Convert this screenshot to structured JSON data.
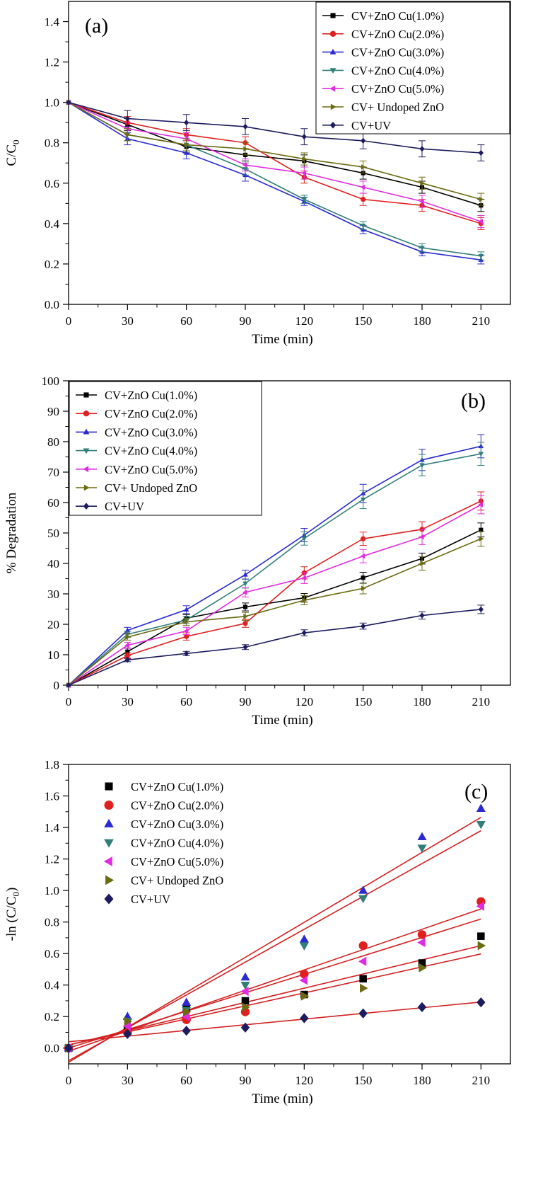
{
  "chart_data": [
    {
      "panel": "(a)",
      "type": "line",
      "xlabel": "Time (min)",
      "ylabel": "C/C",
      "ylabel_sub": "0",
      "xlim": [
        0,
        225
      ],
      "ylim": [
        0.0,
        1.5
      ],
      "xticks": [
        0,
        30,
        60,
        90,
        120,
        150,
        180,
        210
      ],
      "yticks": [
        0.0,
        0.2,
        0.4,
        0.6,
        0.8,
        1.0,
        1.2,
        1.4
      ],
      "ytick_decimals": 1,
      "legend_position": "top-right",
      "legend_frame": true,
      "grid": false,
      "x": [
        0,
        30,
        60,
        90,
        120,
        150,
        180,
        210
      ],
      "series": [
        {
          "name": "CV+ZnO Cu(1.0%)",
          "color": "#000000",
          "marker": "square",
          "values": [
            1.0,
            0.89,
            0.78,
            0.74,
            0.71,
            0.65,
            0.58,
            0.49
          ],
          "errors": [
            0,
            0.03,
            0.03,
            0.03,
            0.03,
            0.03,
            0.03,
            0.03
          ]
        },
        {
          "name": "CV+ZnO Cu(2.0%)",
          "color": "#e02020",
          "marker": "circle",
          "values": [
            1.0,
            0.9,
            0.84,
            0.8,
            0.63,
            0.52,
            0.49,
            0.4
          ],
          "errors": [
            0,
            0.03,
            0.03,
            0.03,
            0.03,
            0.03,
            0.03,
            0.03
          ]
        },
        {
          "name": "CV+ZnO Cu(3.0%)",
          "color": "#2a2ad0",
          "marker": "triangle-up",
          "values": [
            1.0,
            0.82,
            0.75,
            0.64,
            0.51,
            0.37,
            0.26,
            0.22
          ],
          "errors": [
            0,
            0.03,
            0.03,
            0.03,
            0.02,
            0.02,
            0.02,
            0.02
          ]
        },
        {
          "name": "CV+ZnO Cu(4.0%)",
          "color": "#2f7f78",
          "marker": "triangle-down",
          "values": [
            1.0,
            0.84,
            0.79,
            0.67,
            0.52,
            0.39,
            0.28,
            0.24
          ],
          "errors": [
            0,
            0.03,
            0.03,
            0.03,
            0.02,
            0.02,
            0.02,
            0.02
          ]
        },
        {
          "name": "CV+ZnO Cu(5.0%)",
          "color": "#e02ce0",
          "marker": "triangle-left",
          "values": [
            1.0,
            0.87,
            0.82,
            0.69,
            0.65,
            0.58,
            0.51,
            0.41
          ],
          "errors": [
            0,
            0.03,
            0.03,
            0.03,
            0.03,
            0.03,
            0.03,
            0.03
          ]
        },
        {
          "name": "CV+ Undoped ZnO",
          "color": "#6b6b12",
          "marker": "triangle-right",
          "values": [
            1.0,
            0.84,
            0.79,
            0.77,
            0.72,
            0.68,
            0.6,
            0.52
          ],
          "errors": [
            0,
            0.03,
            0.03,
            0.03,
            0.03,
            0.03,
            0.03,
            0.03
          ]
        },
        {
          "name": "CV+UV",
          "color": "#1c1c5e",
          "marker": "diamond",
          "values": [
            1.0,
            0.92,
            0.9,
            0.88,
            0.83,
            0.81,
            0.77,
            0.75
          ],
          "errors": [
            0,
            0.04,
            0.04,
            0.04,
            0.04,
            0.04,
            0.04,
            0.04
          ]
        }
      ]
    },
    {
      "panel": "(b)",
      "type": "line",
      "xlabel": "Time (min)",
      "ylabel": "% Degradation",
      "xlim": [
        0,
        225
      ],
      "ylim": [
        0,
        100
      ],
      "xticks": [
        0,
        30,
        60,
        90,
        120,
        150,
        180,
        210
      ],
      "yticks": [
        0,
        10,
        20,
        30,
        40,
        50,
        60,
        70,
        80,
        90,
        100
      ],
      "ytick_decimals": 0,
      "legend_position": "top-left",
      "legend_frame": true,
      "grid": false,
      "x": [
        0,
        30,
        60,
        90,
        120,
        150,
        180,
        210
      ],
      "series": [
        {
          "name": "CV+ZnO Cu(1.0%)",
          "color": "#000000",
          "marker": "square",
          "values": [
            0,
            11.0,
            22.0,
            25.7,
            28.7,
            35.3,
            41.6,
            51.0
          ],
          "errors": [
            0,
            1.2,
            1.2,
            1.3,
            1.4,
            1.8,
            1.8,
            2.3
          ]
        },
        {
          "name": "CV+ZnO Cu(2.0%)",
          "color": "#e02020",
          "marker": "circle",
          "values": [
            0,
            9.7,
            16.0,
            20.3,
            36.9,
            48.1,
            51.2,
            60.5
          ],
          "errors": [
            0,
            1.0,
            1.2,
            1.3,
            2.0,
            2.2,
            2.5,
            3.0
          ]
        },
        {
          "name": "CV+ZnO Cu(3.0%)",
          "color": "#2a2ad0",
          "marker": "triangle-up",
          "values": [
            0,
            18.0,
            24.8,
            36.3,
            49.3,
            63.0,
            74.0,
            78.5
          ],
          "errors": [
            0,
            1.0,
            1.3,
            1.5,
            2.2,
            3.0,
            3.5,
            3.8
          ]
        },
        {
          "name": "CV+ZnO Cu(4.0%)",
          "color": "#2f7f78",
          "marker": "triangle-down",
          "values": [
            0,
            16.7,
            21.4,
            33.4,
            48.2,
            61.0,
            72.3,
            76.0
          ],
          "errors": [
            0,
            1.0,
            1.2,
            1.5,
            2.2,
            3.0,
            3.5,
            3.8
          ]
        },
        {
          "name": "CV+ZnO Cu(5.0%)",
          "color": "#e02ce0",
          "marker": "triangle-left",
          "values": [
            0,
            13.1,
            17.8,
            30.5,
            35.2,
            42.4,
            48.7,
            59.3
          ],
          "errors": [
            0,
            1.0,
            1.2,
            1.5,
            1.8,
            2.2,
            2.5,
            3.0
          ]
        },
        {
          "name": "CV+ Undoped ZnO",
          "color": "#6b6b12",
          "marker": "triangle-right",
          "values": [
            0,
            15.8,
            20.8,
            22.6,
            27.9,
            31.8,
            40.0,
            48.1
          ],
          "errors": [
            0,
            1.0,
            1.2,
            1.3,
            1.5,
            1.8,
            2.2,
            2.5
          ]
        },
        {
          "name": "CV+UV",
          "color": "#1c1c5e",
          "marker": "diamond",
          "values": [
            0,
            8.3,
            10.4,
            12.5,
            17.2,
            19.4,
            22.9,
            24.9
          ],
          "errors": [
            0,
            0.6,
            0.7,
            0.8,
            1.0,
            1.0,
            1.2,
            1.4
          ]
        }
      ]
    },
    {
      "panel": "(c)",
      "type": "scatter",
      "xlabel": "Time (min)",
      "ylabel": "-ln (C/C",
      "ylabel_sub": "0",
      "ylabel_tail": ")",
      "xlim": [
        0,
        225
      ],
      "ylim": [
        -0.1,
        1.8
      ],
      "xticks": [
        0,
        30,
        60,
        90,
        120,
        150,
        180,
        210
      ],
      "yticks": [
        0.0,
        0.2,
        0.4,
        0.6,
        0.8,
        1.0,
        1.2,
        1.4,
        1.6,
        1.8
      ],
      "ytick_decimals": 1,
      "legend_position": "top-left",
      "legend_frame": false,
      "grid": false,
      "fit_color": "#d42020",
      "x": [
        0,
        30,
        60,
        90,
        120,
        150,
        180,
        210
      ],
      "series": [
        {
          "name": "CV+ZnO Cu(1.0%)",
          "color": "#000000",
          "marker": "square",
          "values": [
            0,
            0.12,
            0.25,
            0.3,
            0.34,
            0.44,
            0.54,
            0.71
          ],
          "fit": {
            "intercept": 0.02,
            "slope": 0.00275
          }
        },
        {
          "name": "CV+ZnO Cu(2.0%)",
          "color": "#e02020",
          "marker": "circle",
          "values": [
            0,
            0.1,
            0.18,
            0.23,
            0.47,
            0.65,
            0.72,
            0.93
          ],
          "fit": {
            "intercept": -0.02,
            "slope": 0.0043
          }
        },
        {
          "name": "CV+ZnO Cu(3.0%)",
          "color": "#2a2ad0",
          "marker": "triangle-up",
          "values": [
            0,
            0.2,
            0.29,
            0.45,
            0.69,
            1.0,
            1.34,
            1.52
          ],
          "fit": {
            "intercept": -0.09,
            "slope": 0.0074
          }
        },
        {
          "name": "CV+ZnO Cu(4.0%)",
          "color": "#2f7f78",
          "marker": "triangle-down",
          "values": [
            0,
            0.17,
            0.24,
            0.4,
            0.65,
            0.95,
            1.27,
            1.42
          ],
          "fit": {
            "intercept": -0.08,
            "slope": 0.00695
          }
        },
        {
          "name": "CV+ZnO Cu(5.0%)",
          "color": "#e02ce0",
          "marker": "triangle-left",
          "values": [
            0,
            0.14,
            0.2,
            0.36,
            0.43,
            0.55,
            0.67,
            0.9
          ],
          "fit": {
            "intercept": 0.0,
            "slope": 0.0039
          }
        },
        {
          "name": "CV+ Undoped ZnO",
          "color": "#6b6b12",
          "marker": "triangle-right",
          "values": [
            0,
            0.17,
            0.23,
            0.26,
            0.33,
            0.38,
            0.51,
            0.65
          ],
          "fit": {
            "intercept": 0.02,
            "slope": 0.003
          }
        },
        {
          "name": "CV+UV",
          "color": "#1c1c5e",
          "marker": "diamond",
          "values": [
            0,
            0.09,
            0.11,
            0.13,
            0.19,
            0.22,
            0.26,
            0.29
          ],
          "fit": {
            "intercept": 0.04,
            "slope": 0.0012
          }
        }
      ]
    }
  ]
}
